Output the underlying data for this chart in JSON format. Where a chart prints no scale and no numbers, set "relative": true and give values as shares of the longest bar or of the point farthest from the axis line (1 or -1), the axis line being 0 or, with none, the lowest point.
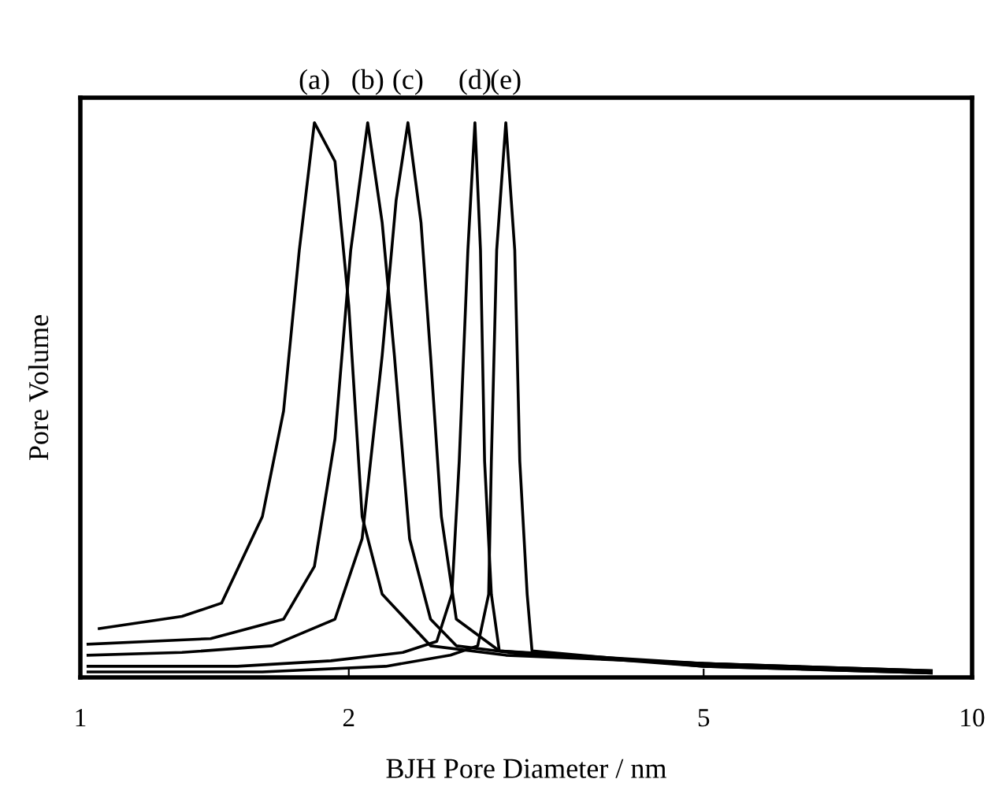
{
  "chart_data": {
    "type": "line",
    "relative": true,
    "xlabel": "BJH Pore Diameter / nm",
    "ylabel": "Pore Volume",
    "log": "x",
    "xlim": [
      1,
      10
    ],
    "xticks": [
      1,
      2,
      5,
      10
    ],
    "grid": false,
    "marker": "none",
    "line_style": "solid",
    "series": [
      {
        "name": "(a)",
        "color": "#000000",
        "x": [
          1.05,
          1.3,
          1.44,
          1.6,
          1.69,
          1.76,
          1.83,
          1.93,
          2.0,
          2.07,
          2.18,
          2.47,
          3.0,
          5.0,
          9.0
        ],
        "values": [
          0.088,
          0.11,
          0.134,
          0.29,
          0.48,
          0.77,
          1.0,
          0.93,
          0.67,
          0.29,
          0.15,
          0.057,
          0.04,
          0.025,
          0.012
        ]
      },
      {
        "name": "(b)",
        "color": "#000000",
        "x": [
          1.02,
          1.4,
          1.69,
          1.83,
          1.93,
          2.01,
          2.1,
          2.18,
          2.25,
          2.34,
          2.47,
          2.64,
          3.2,
          5.0,
          9.0
        ],
        "values": [
          0.06,
          0.07,
          0.105,
          0.2,
          0.43,
          0.77,
          1.0,
          0.82,
          0.58,
          0.25,
          0.105,
          0.057,
          0.04,
          0.025,
          0.012
        ]
      },
      {
        "name": "(c)",
        "color": "#000000",
        "x": [
          1.02,
          1.3,
          1.64,
          1.93,
          2.07,
          2.18,
          2.26,
          2.33,
          2.41,
          2.47,
          2.54,
          2.64,
          2.95,
          5.0,
          9.0
        ],
        "values": [
          0.04,
          0.045,
          0.057,
          0.105,
          0.25,
          0.58,
          0.86,
          1.0,
          0.82,
          0.58,
          0.29,
          0.105,
          0.048,
          0.025,
          0.01
        ]
      },
      {
        "name": "(d)",
        "color": "#000000",
        "x": [
          1.02,
          1.5,
          1.91,
          2.3,
          2.51,
          2.61,
          2.66,
          2.72,
          2.77,
          2.81,
          2.84,
          2.89,
          2.95,
          5.0,
          9.0
        ],
        "values": [
          0.02,
          0.02,
          0.03,
          0.045,
          0.065,
          0.15,
          0.39,
          0.77,
          1.0,
          0.77,
          0.39,
          0.15,
          0.048,
          0.02,
          0.008
        ]
      },
      {
        "name": "(e)",
        "color": "#000000",
        "x": [
          1.02,
          1.6,
          2.2,
          2.6,
          2.79,
          2.87,
          2.89,
          2.93,
          3.0,
          3.07,
          3.11,
          3.17,
          3.21,
          5.0,
          9.0
        ],
        "values": [
          0.01,
          0.01,
          0.02,
          0.04,
          0.057,
          0.15,
          0.39,
          0.77,
          1.0,
          0.77,
          0.39,
          0.15,
          0.048,
          0.02,
          0.008
        ]
      }
    ]
  }
}
